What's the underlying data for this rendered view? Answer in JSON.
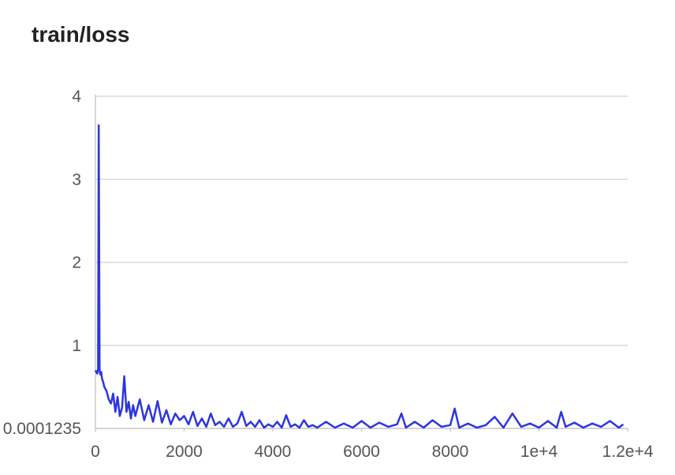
{
  "chart_data": {
    "type": "line",
    "title": "train/loss",
    "xlabel": "",
    "ylabel": "",
    "xlim": [
      0,
      12000
    ],
    "ylim": [
      0.0001235,
      4
    ],
    "x_ticks": [
      {
        "value": 0,
        "label": "0"
      },
      {
        "value": 2000,
        "label": "2000"
      },
      {
        "value": 4000,
        "label": "4000"
      },
      {
        "value": 6000,
        "label": "6000"
      },
      {
        "value": 8000,
        "label": "8000"
      },
      {
        "value": 10000,
        "label": "1e+4"
      },
      {
        "value": 12000,
        "label": "1.2e+4"
      }
    ],
    "y_ticks": [
      {
        "value": 0.0001235,
        "label": "0.0001235"
      },
      {
        "value": 1,
        "label": "1"
      },
      {
        "value": 2,
        "label": "2"
      },
      {
        "value": 3,
        "label": "3"
      },
      {
        "value": 4,
        "label": "4"
      }
    ],
    "grid": "horizontal",
    "line_color": "#2d35e0",
    "series": [
      {
        "x": [
          0,
          20,
          40,
          60,
          75,
          85,
          95,
          110,
          130,
          150,
          180,
          200,
          250,
          300,
          350,
          400,
          450,
          500,
          550,
          600,
          650,
          700,
          750,
          800,
          850,
          900,
          1000,
          1100,
          1200,
          1300,
          1400,
          1500,
          1600,
          1700,
          1800,
          1900,
          2000,
          2100,
          2200,
          2300,
          2400,
          2500,
          2600,
          2700,
          2800,
          2900,
          3000,
          3100,
          3200,
          3300,
          3400,
          3500,
          3600,
          3700,
          3800,
          3900,
          4000,
          4100,
          4200,
          4300,
          4400,
          4500,
          4600,
          4700,
          4800,
          4900,
          5000,
          5200,
          5400,
          5600,
          5800,
          6000,
          6200,
          6400,
          6600,
          6800,
          6900,
          7000,
          7200,
          7400,
          7600,
          7800,
          8000,
          8100,
          8200,
          8400,
          8600,
          8800,
          9000,
          9200,
          9400,
          9600,
          9800,
          10000,
          10200,
          10400,
          10500,
          10600,
          10800,
          11000,
          11200,
          11400,
          11600,
          11800,
          11900
        ],
        "y": [
          0.7,
          0.68,
          0.66,
          0.72,
          3.65,
          2.1,
          0.7,
          0.65,
          0.68,
          0.6,
          0.55,
          0.5,
          0.45,
          0.35,
          0.3,
          0.42,
          0.2,
          0.38,
          0.15,
          0.25,
          0.63,
          0.2,
          0.32,
          0.12,
          0.28,
          0.15,
          0.35,
          0.1,
          0.28,
          0.08,
          0.33,
          0.07,
          0.22,
          0.05,
          0.18,
          0.1,
          0.15,
          0.05,
          0.2,
          0.03,
          0.12,
          0.02,
          0.18,
          0.04,
          0.08,
          0.02,
          0.12,
          0.02,
          0.06,
          0.2,
          0.03,
          0.08,
          0.02,
          0.1,
          0.01,
          0.05,
          0.02,
          0.08,
          0.01,
          0.16,
          0.02,
          0.05,
          0.01,
          0.1,
          0.02,
          0.04,
          0.01,
          0.08,
          0.01,
          0.06,
          0.01,
          0.09,
          0.01,
          0.07,
          0.02,
          0.05,
          0.18,
          0.01,
          0.08,
          0.01,
          0.1,
          0.02,
          0.04,
          0.24,
          0.01,
          0.06,
          0.01,
          0.04,
          0.14,
          0.01,
          0.18,
          0.02,
          0.06,
          0.01,
          0.09,
          0.01,
          0.2,
          0.02,
          0.07,
          0.01,
          0.06,
          0.02,
          0.09,
          0.01,
          0.05
        ]
      }
    ]
  }
}
